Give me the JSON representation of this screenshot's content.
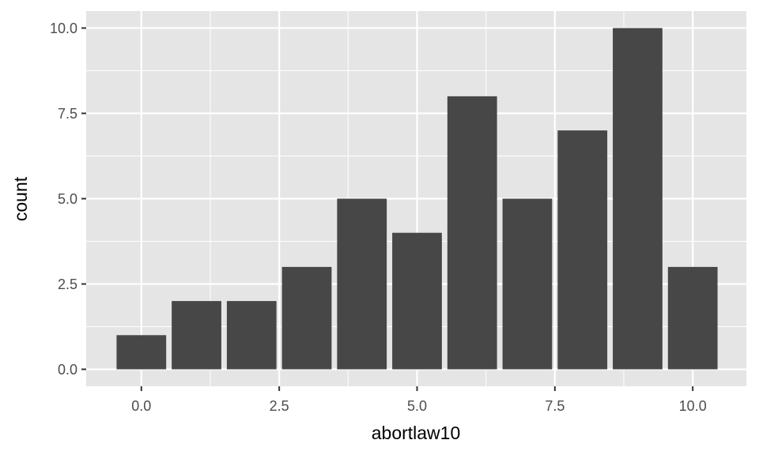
{
  "chart_data": {
    "type": "bar",
    "x": [
      0,
      1,
      2,
      3,
      4,
      5,
      6,
      7,
      8,
      9,
      10
    ],
    "values": [
      1,
      2,
      2,
      3,
      5,
      4,
      8,
      5,
      7,
      10,
      3
    ],
    "xlabel": "abortlaw10",
    "ylabel": "count",
    "xlim": [
      -0.5,
      10.5
    ],
    "ylim": [
      0,
      10
    ],
    "x_ticks": [
      0,
      2.5,
      5,
      7.5,
      10
    ],
    "x_tick_labels": [
      "0.0",
      "2.5",
      "5.0",
      "7.5",
      "10.0"
    ],
    "y_ticks": [
      0,
      2.5,
      5,
      7.5,
      10
    ],
    "y_tick_labels": [
      "0.0",
      "2.5",
      "5.0",
      "7.5",
      "10.0"
    ],
    "grid": true,
    "colors": {
      "bar": "#474747",
      "panel": "#e5e5e5",
      "grid": "#ffffff",
      "tick": "#333333"
    }
  }
}
